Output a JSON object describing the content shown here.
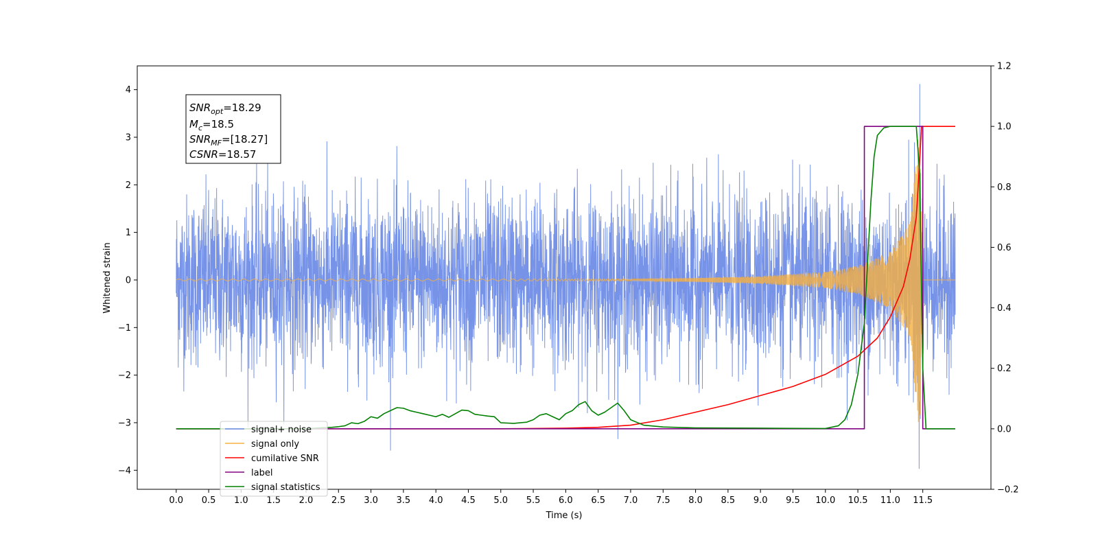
{
  "chart_data": {
    "type": "line",
    "xlabel": "Time (s)",
    "ylabel": "Whitened strain",
    "xlim": [
      -0.6,
      12.55
    ],
    "ylim": [
      -4.4,
      4.5
    ],
    "y2lim": [
      -0.2,
      1.2
    ],
    "x_ticks": [
      0.0,
      0.5,
      1.0,
      1.5,
      2.0,
      2.5,
      3.0,
      3.5,
      4.0,
      4.5,
      5.0,
      5.5,
      6.0,
      6.5,
      7.0,
      7.5,
      8.0,
      8.5,
      9.0,
      9.5,
      10.0,
      10.5,
      11.0,
      11.5
    ],
    "x_tick_labels": [
      "0.0",
      "0.5",
      "1.0",
      "1.5",
      "2.0",
      "2.5",
      "3.0",
      "3.5",
      "4.0",
      "4.5",
      "5.0",
      "5.5",
      "6.0",
      "6.5",
      "7.0",
      "7.5",
      "8.0",
      "8.5",
      "9.0",
      "9.5",
      "10.0",
      "10.5",
      "11.0",
      "11.5"
    ],
    "y_ticks": [
      -4,
      -3,
      -2,
      -1,
      0,
      1,
      2,
      3,
      4
    ],
    "y_tick_labels": [
      "−4",
      "−3",
      "−2",
      "−1",
      "0",
      "1",
      "2",
      "3",
      "4"
    ],
    "y2_ticks": [
      -0.2,
      0.0,
      0.2,
      0.4,
      0.6,
      0.8,
      1.0,
      1.2
    ],
    "y2_tick_labels": [
      "−0.2",
      "0.0",
      "0.2",
      "0.4",
      "0.6",
      "0.8",
      "1.0",
      "1.2"
    ],
    "grid": false,
    "legend_position": "lower-left",
    "colors": {
      "signal_noise": "#6b8ae6",
      "signal_only": "#f5b041",
      "cumulative_snr": "#ff0000",
      "label": "#800080",
      "signal_statistics": "#008000"
    },
    "legend": [
      {
        "name": "signal+ noise",
        "key": "signal_noise"
      },
      {
        "name": "signal only",
        "key": "signal_only"
      },
      {
        "name": "cumilative SNR",
        "key": "cumulative_snr"
      },
      {
        "name": "label",
        "key": "label"
      },
      {
        "name": "signal statistics",
        "key": "signal_statistics"
      }
    ],
    "annotation": {
      "snr_opt": {
        "main": "SNR",
        "sub": "opt",
        "value": "=18.29"
      },
      "mc": {
        "main": "M",
        "sub": "c",
        "value": "=18.5"
      },
      "snr_mf": {
        "main": "SNR",
        "sub": "MF",
        "value": "=[18.27]"
      },
      "csnr": {
        "main": "CSNR",
        "value": "=18.57"
      }
    },
    "series": [
      {
        "name": "signal+ noise",
        "key": "signal_noise",
        "axis": "left",
        "x_range": [
          0.0,
          12.0
        ],
        "envelope_std": 1.05,
        "peak_values": {
          "max": 4.12,
          "min": -3.97
        }
      },
      {
        "name": "signal only",
        "key": "signal_only",
        "axis": "left",
        "x_range": [
          0.0,
          12.0
        ],
        "merger_time": 11.47,
        "peak_amplitude": 3.3,
        "amplitude_points": [
          [
            7.0,
            0.02
          ],
          [
            8.0,
            0.04
          ],
          [
            9.0,
            0.08
          ],
          [
            10.0,
            0.17
          ],
          [
            10.5,
            0.3
          ],
          [
            11.0,
            0.6
          ],
          [
            11.3,
            1.2
          ],
          [
            11.45,
            3.3
          ],
          [
            11.5,
            0.0
          ]
        ]
      },
      {
        "name": "cumilative SNR",
        "key": "cumulative_snr",
        "axis": "right",
        "points": [
          [
            0.0,
            0.0
          ],
          [
            5.0,
            0.0
          ],
          [
            6.0,
            0.002
          ],
          [
            6.5,
            0.005
          ],
          [
            7.0,
            0.012
          ],
          [
            7.5,
            0.03
          ],
          [
            8.0,
            0.055
          ],
          [
            8.5,
            0.08
          ],
          [
            9.0,
            0.11
          ],
          [
            9.5,
            0.14
          ],
          [
            10.0,
            0.18
          ],
          [
            10.5,
            0.24
          ],
          [
            10.8,
            0.3
          ],
          [
            11.0,
            0.37
          ],
          [
            11.2,
            0.47
          ],
          [
            11.3,
            0.56
          ],
          [
            11.4,
            0.7
          ],
          [
            11.45,
            0.88
          ],
          [
            11.48,
            1.0
          ],
          [
            12.0,
            1.0
          ]
        ]
      },
      {
        "name": "label",
        "key": "label",
        "axis": "right",
        "points": [
          [
            0.0,
            0.0
          ],
          [
            10.6,
            0.0
          ],
          [
            10.6,
            1.0
          ],
          [
            11.5,
            1.0
          ],
          [
            11.5,
            0.0
          ],
          [
            12.0,
            0.0
          ]
        ]
      },
      {
        "name": "signal statistics",
        "key": "signal_statistics",
        "axis": "right",
        "points": [
          [
            0.0,
            0.0
          ],
          [
            2.0,
            0.0
          ],
          [
            2.2,
            0.003
          ],
          [
            2.4,
            0.005
          ],
          [
            2.5,
            0.007
          ],
          [
            2.6,
            0.01
          ],
          [
            2.7,
            0.02
          ],
          [
            2.8,
            0.017
          ],
          [
            2.9,
            0.025
          ],
          [
            3.0,
            0.04
          ],
          [
            3.1,
            0.035
          ],
          [
            3.2,
            0.05
          ],
          [
            3.3,
            0.06
          ],
          [
            3.4,
            0.07
          ],
          [
            3.5,
            0.068
          ],
          [
            3.6,
            0.06
          ],
          [
            3.7,
            0.055
          ],
          [
            3.8,
            0.05
          ],
          [
            3.9,
            0.045
          ],
          [
            4.0,
            0.04
          ],
          [
            4.1,
            0.048
          ],
          [
            4.2,
            0.038
          ],
          [
            4.3,
            0.05
          ],
          [
            4.4,
            0.062
          ],
          [
            4.5,
            0.06
          ],
          [
            4.6,
            0.048
          ],
          [
            4.7,
            0.045
          ],
          [
            4.8,
            0.042
          ],
          [
            4.9,
            0.04
          ],
          [
            5.0,
            0.02
          ],
          [
            5.2,
            0.018
          ],
          [
            5.4,
            0.022
          ],
          [
            5.5,
            0.03
          ],
          [
            5.6,
            0.045
          ],
          [
            5.7,
            0.05
          ],
          [
            5.8,
            0.04
          ],
          [
            5.9,
            0.03
          ],
          [
            6.0,
            0.05
          ],
          [
            6.1,
            0.06
          ],
          [
            6.2,
            0.08
          ],
          [
            6.3,
            0.09
          ],
          [
            6.4,
            0.06
          ],
          [
            6.5,
            0.045
          ],
          [
            6.6,
            0.055
          ],
          [
            6.7,
            0.07
          ],
          [
            6.8,
            0.085
          ],
          [
            6.9,
            0.06
          ],
          [
            7.0,
            0.03
          ],
          [
            7.2,
            0.012
          ],
          [
            7.5,
            0.006
          ],
          [
            8.0,
            0.003
          ],
          [
            9.0,
            0.002
          ],
          [
            10.0,
            0.001
          ],
          [
            10.2,
            0.01
          ],
          [
            10.3,
            0.03
          ],
          [
            10.4,
            0.08
          ],
          [
            10.5,
            0.18
          ],
          [
            10.6,
            0.35
          ],
          [
            10.65,
            0.55
          ],
          [
            10.7,
            0.75
          ],
          [
            10.75,
            0.9
          ],
          [
            10.8,
            0.97
          ],
          [
            10.9,
            0.995
          ],
          [
            11.0,
            1.0
          ],
          [
            11.4,
            1.0
          ],
          [
            11.45,
            0.85
          ],
          [
            11.5,
            0.2
          ],
          [
            11.55,
            0.0
          ],
          [
            12.0,
            0.0
          ]
        ]
      }
    ]
  }
}
